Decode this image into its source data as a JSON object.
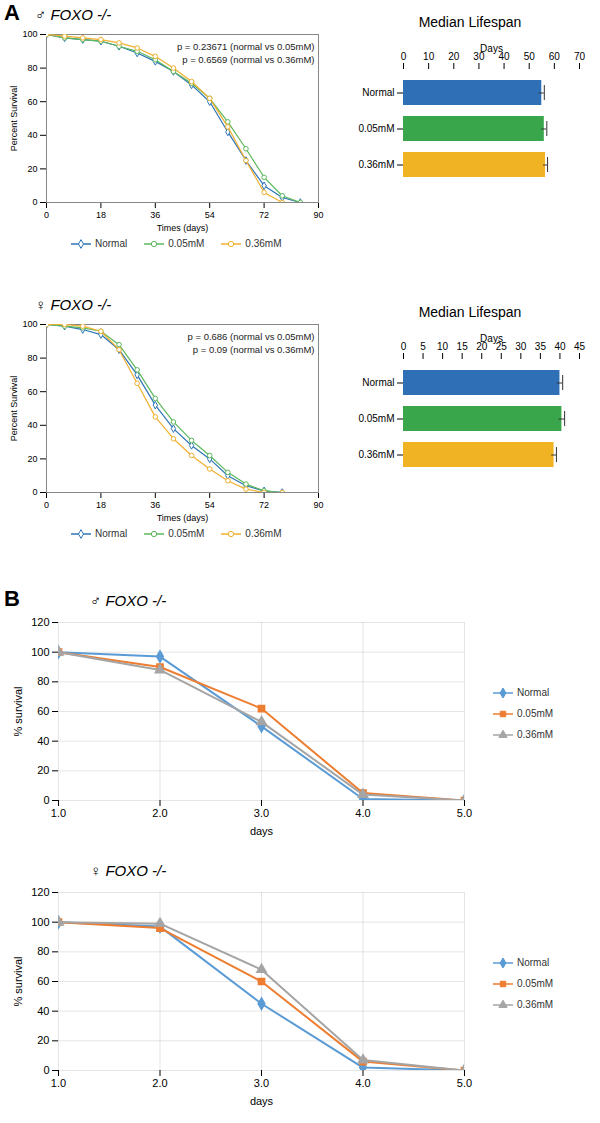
{
  "chart_data": [
    {
      "type": "line",
      "panel": "A",
      "title": "♂ FOXO -/-",
      "x_label": "Times (days)",
      "y_label": "Percent Survival",
      "annotations": [
        "p = 0.23671 (normal vs 0.05mM)",
        "p = 0.6569 (normal vs 0.36mM)"
      ],
      "x": [
        0,
        6,
        12,
        18,
        24,
        30,
        36,
        42,
        48,
        54,
        60,
        66,
        72,
        78,
        84
      ],
      "series": [
        {
          "name": "Normal",
          "color": "#2e75b6",
          "marker": "diamond",
          "values": [
            100,
            98,
            97,
            96,
            93,
            89,
            84,
            78,
            70,
            60,
            42,
            25,
            10,
            3,
            0
          ]
        },
        {
          "name": "0.05mM",
          "color": "#5cb85c",
          "marker": "circle",
          "values": [
            100,
            98,
            97,
            96,
            93,
            90,
            85,
            78,
            71,
            62,
            48,
            32,
            15,
            4,
            0
          ]
        },
        {
          "name": "0.36mM",
          "color": "#f0b030",
          "marker": "circle",
          "values": [
            100,
            99,
            98,
            97,
            95,
            92,
            87,
            80,
            72,
            62,
            45,
            25,
            6,
            0,
            null
          ]
        }
      ],
      "xlim": [
        0,
        90
      ],
      "xticks": [
        0,
        18,
        36,
        54,
        72,
        90
      ],
      "ylim": [
        0,
        100
      ],
      "yticks": [
        0,
        20,
        40,
        60,
        80,
        100
      ],
      "legend": "bottom"
    },
    {
      "type": "bar",
      "orientation": "horizontal",
      "title": "Median Lifespan",
      "x_label": "Days",
      "categories": [
        "Normal",
        "0.05mM",
        "0.36mM"
      ],
      "values": [
        55,
        56,
        56.5
      ],
      "errors": [
        1,
        1,
        0.8
      ],
      "colors": [
        "#2e6fb5",
        "#3aa64c",
        "#f0b323"
      ],
      "xlim": [
        0,
        70
      ],
      "xticks": [
        0,
        10,
        20,
        30,
        40,
        50,
        60,
        70
      ]
    },
    {
      "type": "line",
      "title": "♀ FOXO -/-",
      "x_label": "Times (days)",
      "y_label": "Percent Survival",
      "annotations": [
        "p = 0.686 (normal vs 0.05mM)",
        "p = 0.09 (normal vs 0.36mM)"
      ],
      "x": [
        0,
        6,
        12,
        18,
        24,
        30,
        36,
        42,
        48,
        54,
        60,
        66,
        72,
        78,
        84
      ],
      "series": [
        {
          "name": "Normal",
          "color": "#2e75b6",
          "marker": "diamond",
          "values": [
            100,
            99,
            97,
            94,
            85,
            70,
            52,
            38,
            28,
            20,
            10,
            4,
            1,
            0,
            null
          ]
        },
        {
          "name": "0.05mM",
          "color": "#5cb85c",
          "marker": "circle",
          "values": [
            100,
            99,
            98,
            96,
            88,
            73,
            56,
            42,
            31,
            22,
            12,
            5,
            1,
            0,
            null
          ]
        },
        {
          "name": "0.36mM",
          "color": "#f0b030",
          "marker": "circle",
          "values": [
            100,
            100,
            99,
            96,
            85,
            65,
            45,
            32,
            22,
            14,
            7,
            2,
            0,
            0,
            null
          ]
        }
      ],
      "xlim": [
        0,
        90
      ],
      "xticks": [
        0,
        18,
        36,
        54,
        72,
        90
      ],
      "ylim": [
        0,
        100
      ],
      "yticks": [
        0,
        20,
        40,
        60,
        80,
        100
      ],
      "legend": "bottom"
    },
    {
      "type": "bar",
      "orientation": "horizontal",
      "title": "Median Lifespan",
      "x_label": "Days",
      "categories": [
        "Normal",
        "0.05mM",
        "0.36mM"
      ],
      "values": [
        40,
        40.5,
        38.5
      ],
      "errors": [
        0.7,
        0.7,
        0.6
      ],
      "colors": [
        "#2e6fb5",
        "#3aa64c",
        "#f0b323"
      ],
      "xlim": [
        0,
        45
      ],
      "xticks": [
        0,
        5,
        10,
        15,
        20,
        25,
        30,
        35,
        40,
        45
      ]
    },
    {
      "type": "line",
      "panel": "B",
      "title": "♂ FOXO -/-",
      "x_label": "days",
      "y_label": "% survival",
      "x": [
        1,
        2,
        3,
        4,
        5
      ],
      "series": [
        {
          "name": "Normal",
          "color": "#5b9bd5",
          "marker": "diamond",
          "values": [
            100,
            97,
            50,
            1,
            0
          ]
        },
        {
          "name": "0.05mM",
          "color": "#ed7d31",
          "marker": "square",
          "values": [
            100,
            90,
            62,
            5,
            0
          ]
        },
        {
          "name": "0.36mM",
          "color": "#a5a5a5",
          "marker": "triangle",
          "values": [
            100,
            88,
            53,
            4,
            0
          ]
        }
      ],
      "xlim": [
        1,
        5
      ],
      "xticks": [
        1,
        2,
        3,
        4,
        5
      ],
      "ylim": [
        0,
        120
      ],
      "yticks": [
        0,
        20,
        40,
        60,
        80,
        100,
        120
      ],
      "grid": true,
      "legend": "right"
    },
    {
      "type": "line",
      "title": "♀ FOXO -/-",
      "x_label": "days",
      "y_label": "% survival",
      "x": [
        1,
        2,
        3,
        4,
        5
      ],
      "series": [
        {
          "name": "Normal",
          "color": "#5b9bd5",
          "marker": "diamond",
          "values": [
            100,
            97,
            45,
            2,
            0
          ]
        },
        {
          "name": "0.05mM",
          "color": "#ed7d31",
          "marker": "square",
          "values": [
            100,
            96,
            60,
            6,
            0
          ]
        },
        {
          "name": "0.36mM",
          "color": "#a5a5a5",
          "marker": "triangle",
          "values": [
            100,
            99,
            68,
            7,
            0
          ]
        }
      ],
      "xlim": [
        1,
        5
      ],
      "xticks": [
        1,
        2,
        3,
        4,
        5
      ],
      "ylim": [
        0,
        120
      ],
      "yticks": [
        0,
        20,
        40,
        60,
        80,
        100,
        120
      ],
      "grid": true,
      "legend": "right"
    }
  ]
}
